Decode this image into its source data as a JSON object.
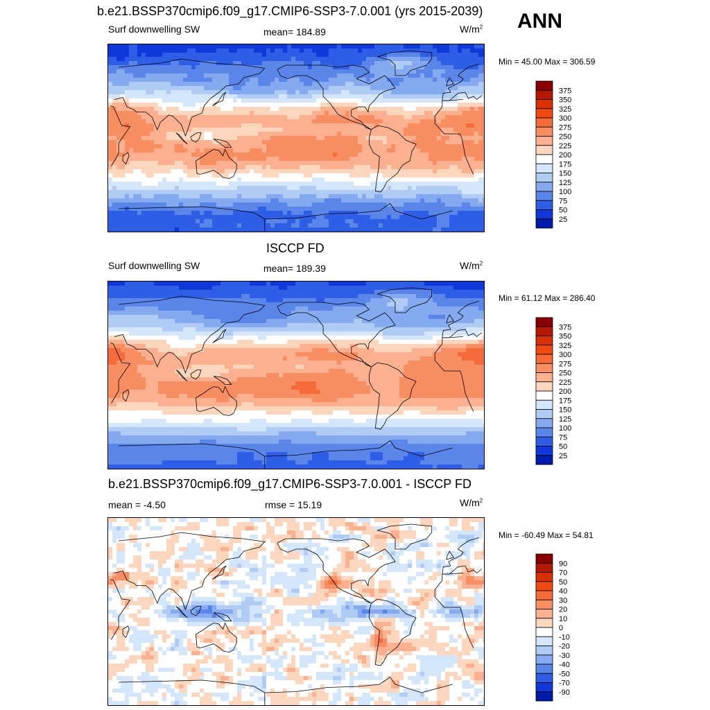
{
  "header": {
    "title": "b.e21.BSSP370cmip6.f09_g17.CMIP6-SSP3-7.0.001 (yrs 2015-2039)",
    "season": "ANN"
  },
  "panels": [
    {
      "id": "model",
      "title": "",
      "left_label": "Surf downwelling SW",
      "center_label": "mean= 184.89",
      "units_base": "W/m",
      "units_exp": "2",
      "minmax": "Min =  45.00 Max = 306.59",
      "field": "model",
      "colorbar": {
        "ticks": [
          "375",
          "350",
          "325",
          "300",
          "275",
          "250",
          "225",
          "200",
          "175",
          "150",
          "125",
          "100",
          "75",
          "50",
          "25"
        ],
        "colors": [
          "#8b0000",
          "#b31800",
          "#d83000",
          "#f04a10",
          "#f56b3a",
          "#f98e63",
          "#fbb190",
          "#fcd6bd",
          "#ffffff",
          "#d4e6fa",
          "#b0ccf5",
          "#86aaf0",
          "#5a86ea",
          "#2e5ee6",
          "#1038d8",
          "#001aaa"
        ]
      }
    },
    {
      "id": "obs",
      "title": "ISCCP FD",
      "left_label": "Surf downwelling SW",
      "center_label": "mean= 189.39",
      "units_base": "W/m",
      "units_exp": "2",
      "minmax": "Min =  61.12 Max = 286.40",
      "field": "obs",
      "colorbar": {
        "ticks": [
          "375",
          "350",
          "325",
          "300",
          "275",
          "250",
          "225",
          "200",
          "175",
          "150",
          "125",
          "100",
          "75",
          "50",
          "25"
        ],
        "colors": [
          "#8b0000",
          "#b31800",
          "#d83000",
          "#f04a10",
          "#f56b3a",
          "#f98e63",
          "#fbb190",
          "#fcd6bd",
          "#ffffff",
          "#d4e6fa",
          "#b0ccf5",
          "#86aaf0",
          "#5a86ea",
          "#2e5ee6",
          "#1038d8",
          "#001aaa"
        ]
      }
    },
    {
      "id": "diff",
      "title": "b.e21.BSSP370cmip6.f09_g17.CMIP6-SSP3-7.0.001 - ISCCP FD",
      "left_label": "mean =  -4.50",
      "center_label": "rmse =  15.19",
      "units_base": "W/m",
      "units_exp": "2",
      "minmax": "Min = -60.49 Max =  54.81",
      "field": "diff",
      "colorbar": {
        "ticks": [
          "90",
          "70",
          "50",
          "40",
          "30",
          "20",
          "10",
          "0",
          "-10",
          "-20",
          "-30",
          "-40",
          "-50",
          "-70",
          "-90"
        ],
        "colors": [
          "#8b0000",
          "#b31800",
          "#d83000",
          "#f04a10",
          "#f56b3a",
          "#f98e63",
          "#fbb190",
          "#fcd6bd",
          "#ffffff",
          "#d4e6fa",
          "#b0ccf5",
          "#86aaf0",
          "#5a86ea",
          "#2e5ee6",
          "#1038d8",
          "#001aaa"
        ]
      }
    }
  ]
}
